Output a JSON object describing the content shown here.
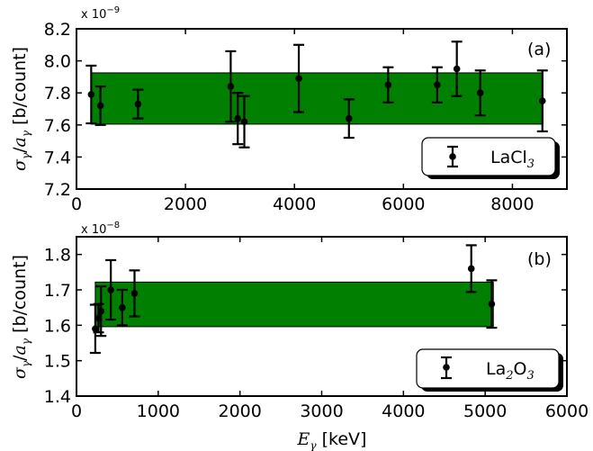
{
  "chart_data": [
    {
      "type": "scatter",
      "panel_label": "(a)",
      "xlim": [
        0,
        9000
      ],
      "ylim": [
        7.2,
        8.2
      ],
      "xticks": [
        "0",
        "2000",
        "4000",
        "6000",
        "8000"
      ],
      "yticks": [
        "7.2",
        "7.4",
        "7.6",
        "7.8",
        "8.0",
        "8.2"
      ],
      "multiplier": "x 10",
      "multiplier_exp": "−9",
      "ylabel_tex": {
        "sym": "σ",
        "sub": "γ",
        "sep": "/",
        "sym2": "a",
        "sub2": "γ",
        "unit": "[b/count]"
      },
      "band": {
        "x": [
          270,
          8560
        ],
        "y": [
          7.605,
          7.925
        ],
        "color": "#007f00"
      },
      "series": [
        {
          "name": "LaCl",
          "name_sub": "3",
          "points": [
            {
              "x": 270,
              "y": 7.79,
              "err": 0.18
            },
            {
              "x": 440,
              "y": 7.72,
              "err": 0.12
            },
            {
              "x": 1130,
              "y": 7.73,
              "err": 0.09
            },
            {
              "x": 2830,
              "y": 7.84,
              "err": 0.22
            },
            {
              "x": 2960,
              "y": 7.64,
              "err": 0.16
            },
            {
              "x": 3080,
              "y": 7.62,
              "err": 0.16
            },
            {
              "x": 4080,
              "y": 7.89,
              "err": 0.21
            },
            {
              "x": 5000,
              "y": 7.64,
              "err": 0.12
            },
            {
              "x": 5720,
              "y": 7.85,
              "err": 0.11
            },
            {
              "x": 6620,
              "y": 7.85,
              "err": 0.11
            },
            {
              "x": 6980,
              "y": 7.95,
              "err": 0.17
            },
            {
              "x": 7410,
              "y": 7.8,
              "err": 0.14
            },
            {
              "x": 8550,
              "y": 7.75,
              "err": 0.19
            }
          ]
        }
      ],
      "legend_position": "lower-right"
    },
    {
      "type": "scatter",
      "panel_label": "(b)",
      "xlim": [
        0,
        6000
      ],
      "ylim": [
        1.4,
        1.85
      ],
      "xticks": [
        "0",
        "1000",
        "2000",
        "3000",
        "4000",
        "5000",
        "6000"
      ],
      "yticks": [
        "1.4",
        "1.5",
        "1.6",
        "1.7",
        "1.8"
      ],
      "multiplier": "x 10",
      "multiplier_exp": "−8",
      "ylabel_tex": {
        "sym": "σ",
        "sub": "γ",
        "sep": "/",
        "sym2": "a",
        "sub2": "γ",
        "unit": "[b/count]"
      },
      "xlabel_tex": {
        "sym": "E",
        "sub": "γ",
        "unit": "[keV]"
      },
      "band": {
        "x": [
          230,
          5100
        ],
        "y": [
          1.596,
          1.722
        ],
        "color": "#007f00"
      },
      "series": [
        {
          "name": "La",
          "name_sub": "2",
          "name_mid": "O",
          "name_sub2": "3",
          "points": [
            {
              "x": 230,
              "y": 1.59,
              "err": 0.068
            },
            {
              "x": 270,
              "y": 1.62,
              "err": 0.04
            },
            {
              "x": 300,
              "y": 1.64,
              "err": 0.07
            },
            {
              "x": 420,
              "y": 1.7,
              "err": 0.084
            },
            {
              "x": 560,
              "y": 1.65,
              "err": 0.05
            },
            {
              "x": 710,
              "y": 1.69,
              "err": 0.065
            },
            {
              "x": 4830,
              "y": 1.76,
              "err": 0.066
            },
            {
              "x": 5080,
              "y": 1.66,
              "err": 0.067
            }
          ]
        }
      ],
      "legend_position": "lower-right"
    }
  ]
}
